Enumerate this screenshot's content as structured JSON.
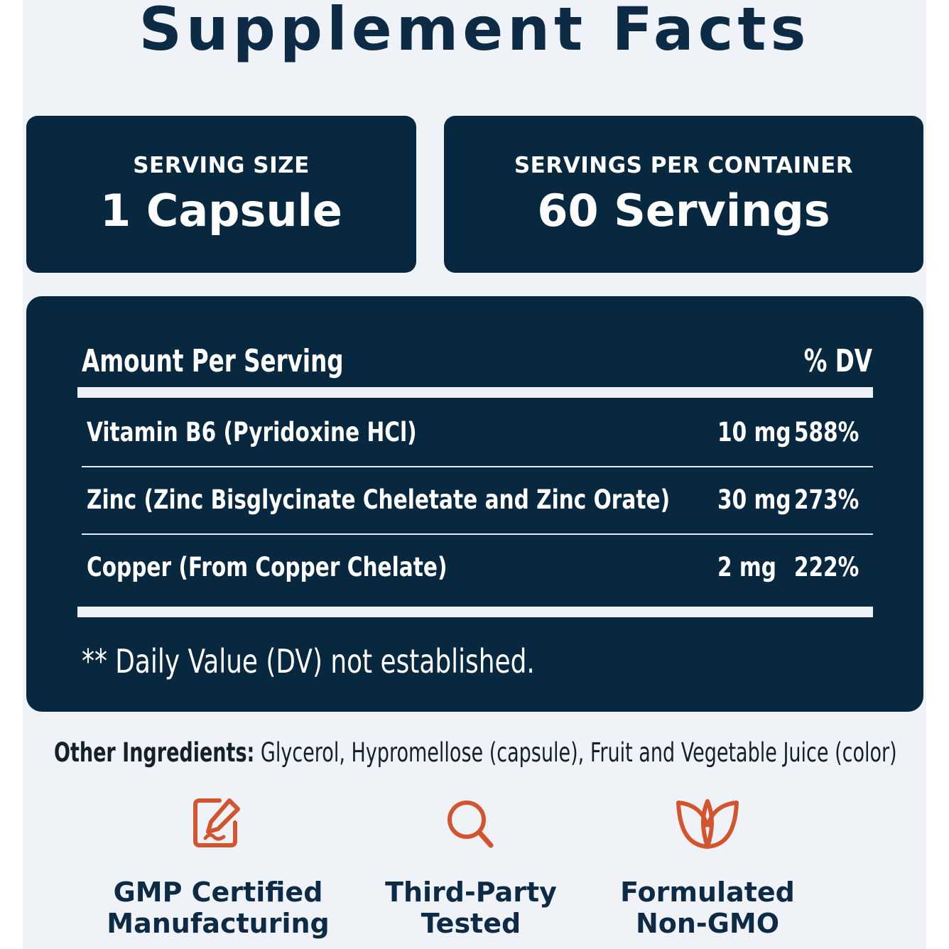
{
  "title": "Supplement Facts",
  "serving_size": {
    "label": "SERVING SIZE",
    "value": "1 Capsule"
  },
  "servings_per_container": {
    "label": "SERVINGS PER CONTAINER",
    "value": "60 Servings"
  },
  "facts": {
    "header_left": "Amount Per Serving",
    "header_right": "% DV",
    "rows": [
      {
        "name": "Vitamin B6 (Pyridoxine HCl)",
        "amount": "10 mg",
        "dv": "588%"
      },
      {
        "name": "Zinc (Zinc Bisglycinate Cheletate and Zinc Orate)",
        "amount": "30 mg",
        "dv": "273%"
      },
      {
        "name": "Copper (From Copper Chelate)",
        "amount": "2 mg",
        "dv": "222%"
      }
    ],
    "footnote": "** Daily Value (DV) not established."
  },
  "other_ingredients": {
    "label": "Other Ingredients:",
    "text": " Glycerol, Hypromellose (capsule), Fruit and Vegetable Juice (color)"
  },
  "badges": [
    {
      "icon": "edit-document-icon",
      "line1": "GMP Certified",
      "line2": "Manufacturing"
    },
    {
      "icon": "magnifier-icon",
      "line1": "Third-Party",
      "line2": "Tested"
    },
    {
      "icon": "leaf-icon",
      "line1": "Formulated",
      "line2": "Non-GMO"
    }
  ],
  "colors": {
    "navy": "#08283f",
    "title": "#0d2b45",
    "icon_orange": "#d2552f",
    "background": "#eff3f8"
  }
}
